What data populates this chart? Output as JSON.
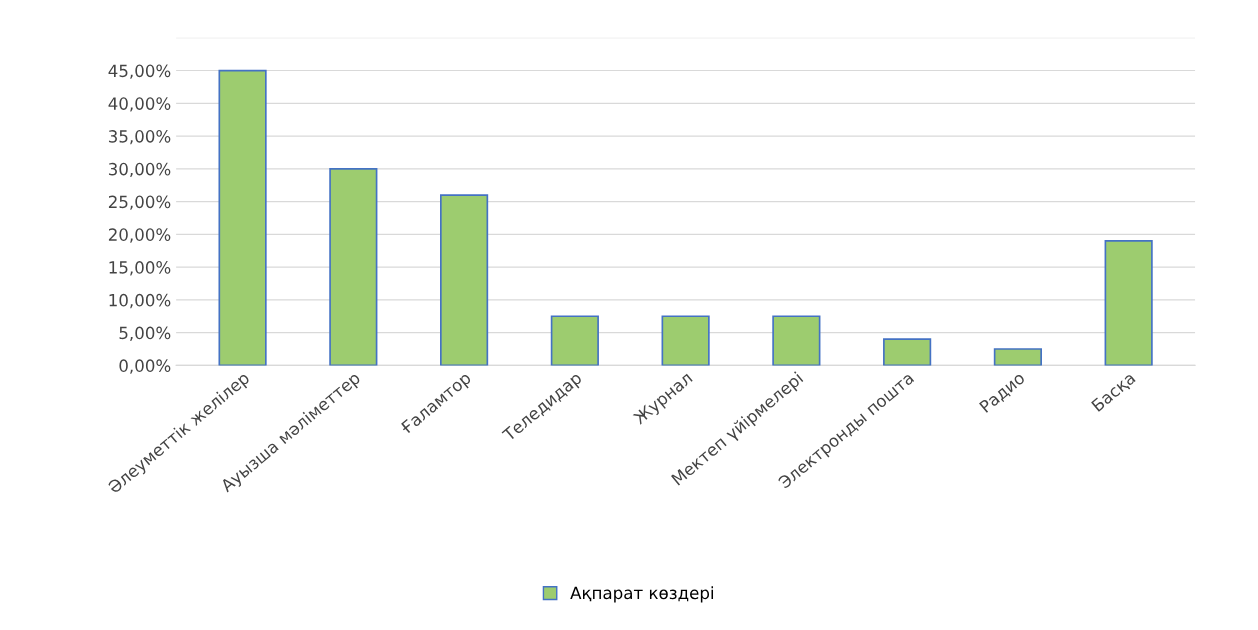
{
  "chart_data": {
    "type": "bar",
    "categories": [
      "Әлеуметтік желілер",
      "Ауызша мәліметтер",
      "Ғаламтор",
      "Теледидар",
      "Журнал",
      "Мектеп үйірмелері",
      "Электронды пошта",
      "Радио",
      "Басқа"
    ],
    "series": [
      {
        "name": "Ақпарат көздері",
        "color": "#9dcc6f",
        "values": [
          45,
          30,
          26,
          7.5,
          7.5,
          7.5,
          4,
          2.5,
          19
        ]
      }
    ],
    "ylim": [
      0,
      50
    ],
    "yticks": [
      {
        "value": 0,
        "label": "0,00%"
      },
      {
        "value": 5,
        "label": "5,00%"
      },
      {
        "value": 10,
        "label": "10,00%"
      },
      {
        "value": 15,
        "label": "15,00%"
      },
      {
        "value": 20,
        "label": "20,00%"
      },
      {
        "value": 25,
        "label": "25,00%"
      },
      {
        "value": 30,
        "label": "30,00%"
      },
      {
        "value": 35,
        "label": "35,00%"
      },
      {
        "value": 40,
        "label": "40,00%"
      },
      {
        "value": 45,
        "label": "45,00%"
      },
      {
        "value": 50,
        "label": null
      }
    ],
    "grid": "y",
    "legend": "bottom"
  }
}
